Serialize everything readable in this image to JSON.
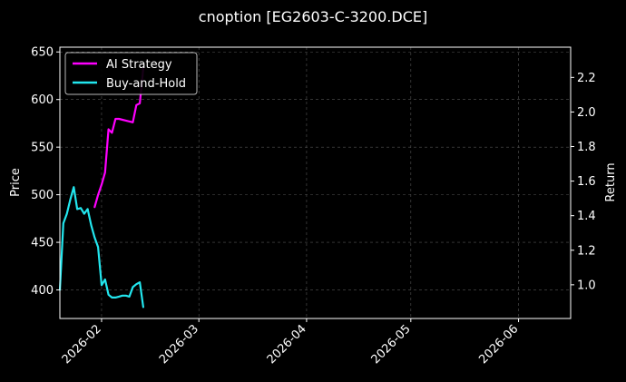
{
  "chart_data": {
    "type": "line",
    "title": "cnoption [EG2603-C-3200.DCE]",
    "ylabel": "Price",
    "y2label": "Return",
    "xlim": [
      "2026-01-20",
      "2026-06-16"
    ],
    "ylim": [
      370,
      655
    ],
    "y2lim": [
      0.805,
      2.375
    ],
    "xticks": [
      "2026-02-01",
      "2026-03-01",
      "2026-04-01",
      "2026-05-01",
      "2026-06-01"
    ],
    "xtick_labels": [
      "2026-02",
      "2026-03",
      "2026-04",
      "2026-05",
      "2026-06"
    ],
    "yticks": [
      400,
      450,
      500,
      550,
      600,
      650
    ],
    "y2ticks": [
      1.0,
      1.2,
      1.4,
      1.6,
      1.8,
      2.0,
      2.2
    ],
    "grid": true,
    "legend_position": "top-left",
    "background": "#000000",
    "series": [
      {
        "name": "AI Strategy",
        "color": "#ff00ff",
        "axis": "right",
        "x": [
          "2026-01-30",
          "2026-01-31",
          "2026-02-01",
          "2026-02-02",
          "2026-02-03",
          "2026-02-04",
          "2026-02-05",
          "2026-02-06",
          "2026-02-08",
          "2026-02-10",
          "2026-02-11",
          "2026-02-12",
          "2026-02-13"
        ],
        "values": [
          1.45,
          1.52,
          1.58,
          1.65,
          1.9,
          1.88,
          1.96,
          1.96,
          1.95,
          1.94,
          2.04,
          2.05,
          2.25
        ]
      },
      {
        "name": "Buy-and-Hold",
        "color": "#22e6ee",
        "axis": "left",
        "x": [
          "2026-01-20",
          "2026-01-21",
          "2026-01-22",
          "2026-01-23",
          "2026-01-24",
          "2026-01-25",
          "2026-01-26",
          "2026-01-27",
          "2026-01-28",
          "2026-01-29",
          "2026-01-30",
          "2026-01-31",
          "2026-02-01",
          "2026-02-02",
          "2026-02-03",
          "2026-02-04",
          "2026-02-05",
          "2026-02-06",
          "2026-02-07",
          "2026-02-08",
          "2026-02-09",
          "2026-02-10",
          "2026-02-11",
          "2026-02-12",
          "2026-02-13"
        ],
        "values": [
          400,
          470,
          480,
          495,
          508,
          485,
          486,
          480,
          485,
          468,
          455,
          445,
          405,
          411,
          395,
          392,
          392,
          393,
          394,
          394,
          393,
          403,
          406,
          408,
          382
        ]
      }
    ]
  }
}
